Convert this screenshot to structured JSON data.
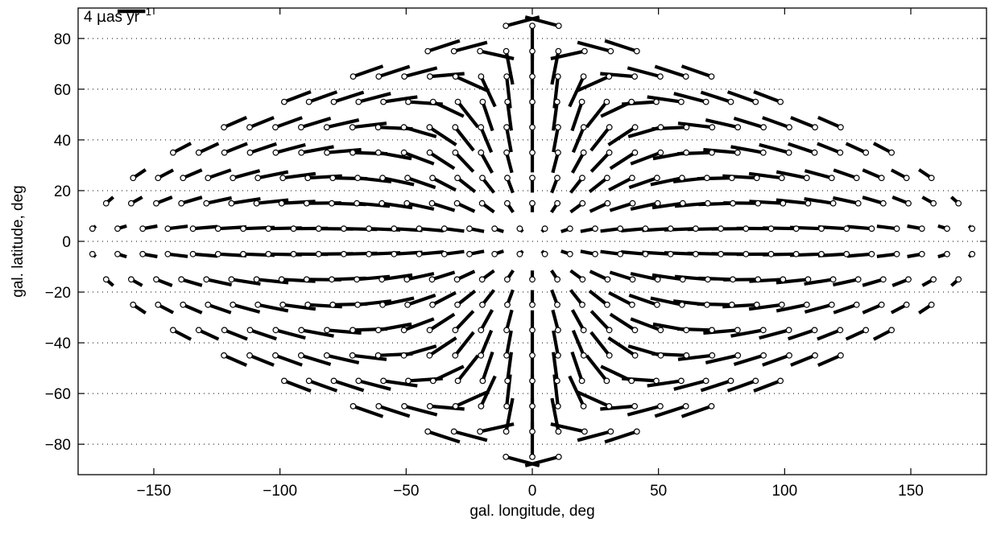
{
  "chart_data": {
    "type": "vector-field",
    "xlabel": "gal. longitude,  deg",
    "ylabel": "gal. latitude,  deg",
    "xlim": [
      -180,
      180
    ],
    "ylim": [
      -92,
      92
    ],
    "x_ticks": [
      -150,
      -100,
      -50,
      0,
      50,
      100,
      150
    ],
    "x_tick_labels": [
      "−150",
      "−100",
      "−50",
      "0",
      "50",
      "100",
      "150"
    ],
    "y_ticks": [
      -80,
      -60,
      -40,
      -20,
      0,
      20,
      40,
      60,
      80
    ],
    "y_tick_labels": [
      "−80",
      "−60",
      "−40",
      "−20",
      "0",
      "20",
      "40",
      "60",
      "80"
    ],
    "grid": "horizontal-dotted",
    "scale_label": {
      "prefix": "4 ",
      "mu": "µ",
      "unit": "as yr",
      "sup": "−1"
    },
    "scale_value": 4,
    "projection": "sinusoidal",
    "latitudes": [
      -85,
      -75,
      -65,
      -55,
      -45,
      -35,
      -25,
      -15,
      -5,
      5,
      15,
      25,
      35,
      45,
      55,
      65,
      75,
      85
    ],
    "longitude_step": 10,
    "field": "glide",
    "glide_amplitude": 5,
    "apex": {
      "l": 180,
      "b": 0
    },
    "marker": "open-circle",
    "line_color": "#000000"
  }
}
